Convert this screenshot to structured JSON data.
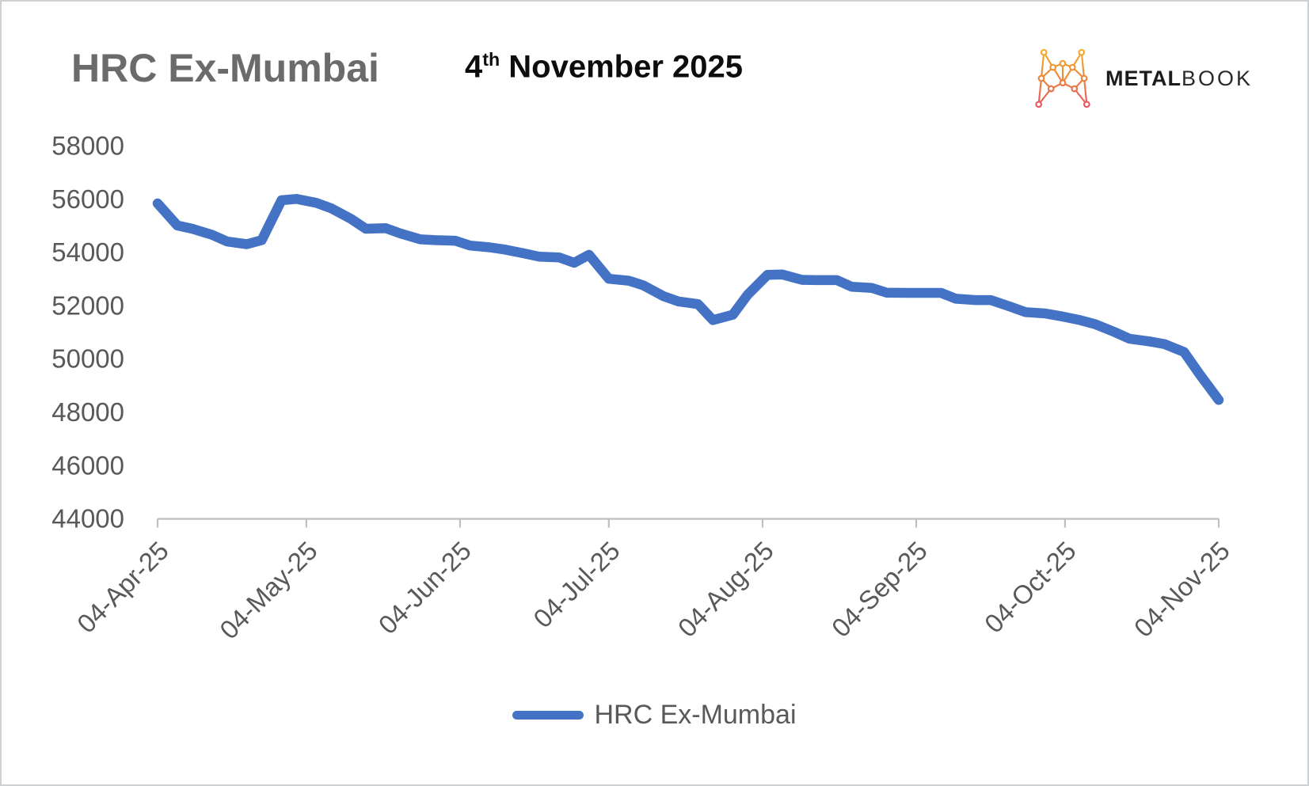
{
  "header": {
    "title": "HRC Ex-Mumbai",
    "date": {
      "day": "4",
      "ordinal": "th",
      "rest": " November 2025"
    }
  },
  "logo": {
    "word_bold": "METAL",
    "word_light": "BOOK",
    "icon_gradient": [
      "#F2B32A",
      "#ED8A35",
      "#E64C68"
    ]
  },
  "legend": {
    "label": "HRC Ex-Mumbai"
  },
  "chart_data": {
    "type": "line",
    "title": "HRC Ex-Mumbai",
    "xlabel": "",
    "ylabel": "",
    "ylim": [
      44000,
      58000
    ],
    "y_ticks": [
      58000,
      56000,
      54000,
      52000,
      50000,
      48000,
      46000,
      44000
    ],
    "x_tick_labels": [
      "04-Apr-25",
      "04-May-25",
      "04-Jun-25",
      "04-Jul-25",
      "04-Aug-25",
      "04-Sep-25",
      "04-Oct-25",
      "04-Nov-25"
    ],
    "x_tick_days": [
      0,
      30,
      61,
      91,
      122,
      153,
      183,
      214
    ],
    "x_range_days": [
      0,
      214
    ],
    "grid": false,
    "legend_position": "bottom",
    "line_color": "#4472C4",
    "axis_color": "#BFBFBF",
    "label_color": "#595959",
    "series": [
      {
        "name": "HRC Ex-Mumbai",
        "color": "#4472C4",
        "dates": [
          "04-Apr-25",
          "08-Apr-25",
          "11-Apr-25",
          "15-Apr-25",
          "18-Apr-25",
          "22-Apr-25",
          "25-Apr-25",
          "29-Apr-25",
          "02-May-25",
          "06-May-25",
          "09-May-25",
          "13-May-25",
          "16-May-25",
          "20-May-25",
          "23-May-25",
          "27-May-25",
          "30-May-25",
          "03-Jun-25",
          "06-Jun-25",
          "10-Jun-25",
          "13-Jun-25",
          "17-Jun-25",
          "20-Jun-25",
          "24-Jun-25",
          "27-Jun-25",
          "30-Jun-25",
          "04-Jul-25",
          "08-Jul-25",
          "11-Jul-25",
          "15-Jul-25",
          "18-Jul-25",
          "22-Jul-25",
          "25-Jul-25",
          "29-Jul-25",
          "01-Aug-25",
          "05-Aug-25",
          "08-Aug-25",
          "12-Aug-25",
          "15-Aug-25",
          "19-Aug-25",
          "22-Aug-25",
          "26-Aug-25",
          "29-Aug-25",
          "02-Sep-25",
          "05-Sep-25",
          "09-Sep-25",
          "12-Sep-25",
          "16-Sep-25",
          "19-Sep-25",
          "23-Sep-25",
          "26-Sep-25",
          "30-Sep-25",
          "03-Oct-25",
          "07-Oct-25",
          "10-Oct-25",
          "14-Oct-25",
          "17-Oct-25",
          "21-Oct-25",
          "24-Oct-25",
          "28-Oct-25",
          "31-Oct-25",
          "04-Nov-25"
        ],
        "days": [
          0,
          4,
          7,
          11,
          14,
          18,
          21,
          25,
          28,
          32,
          35,
          39,
          42,
          46,
          49,
          53,
          56,
          60,
          63,
          67,
          70,
          74,
          77,
          81,
          84,
          87,
          91,
          95,
          98,
          102,
          105,
          109,
          112,
          116,
          119,
          123,
          126,
          130,
          133,
          137,
          140,
          144,
          147,
          151,
          154,
          158,
          161,
          165,
          168,
          172,
          175,
          179,
          182,
          186,
          189,
          193,
          196,
          200,
          203,
          207,
          210,
          214
        ],
        "values": [
          55830,
          55000,
          54880,
          54650,
          54400,
          54300,
          54450,
          55950,
          56000,
          55850,
          55650,
          55250,
          54880,
          54900,
          54700,
          54480,
          54450,
          54430,
          54250,
          54180,
          54100,
          53950,
          53830,
          53800,
          53600,
          53900,
          53000,
          52930,
          52750,
          52350,
          52150,
          52050,
          51450,
          51650,
          52400,
          53150,
          53160,
          52960,
          52950,
          52950,
          52700,
          52660,
          52480,
          52470,
          52470,
          52470,
          52250,
          52200,
          52200,
          51950,
          51750,
          51700,
          51600,
          51450,
          51300,
          51000,
          50750,
          50650,
          50550,
          50250,
          49450,
          48450
        ]
      }
    ]
  }
}
